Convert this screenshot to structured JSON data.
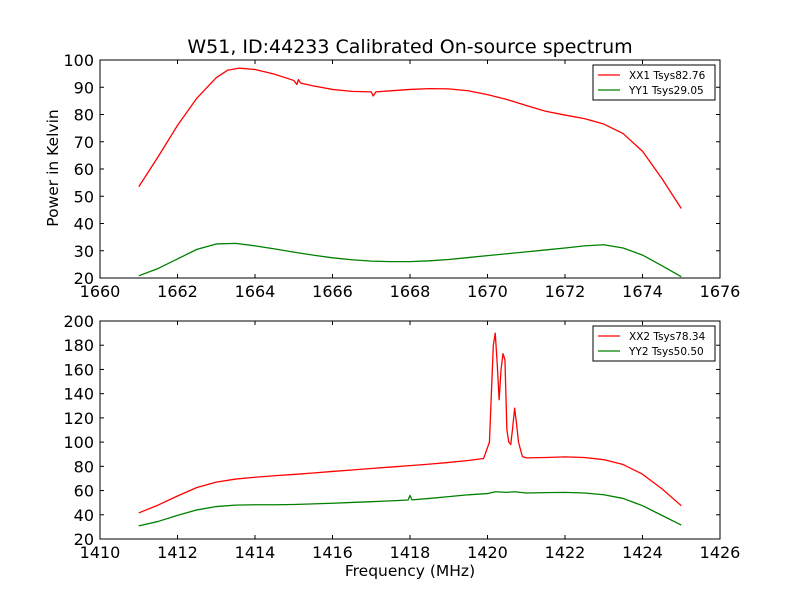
{
  "chart_data": [
    {
      "type": "line",
      "title": "W51, ID:44233 Calibrated On-source spectrum",
      "xlabel": "",
      "ylabel": "Power in Kelvin",
      "xlim": [
        1660,
        1676
      ],
      "ylim": [
        20,
        100
      ],
      "xticks": [
        1660,
        1662,
        1664,
        1666,
        1668,
        1670,
        1672,
        1674,
        1676
      ],
      "yticks": [
        20,
        30,
        40,
        50,
        60,
        70,
        80,
        90,
        100
      ],
      "grid": false,
      "legend_position": "top-right",
      "series": [
        {
          "name": "XX1 Tsys82.76",
          "color": "#ff0000",
          "points": [
            [
              1661.0,
              53.5
            ],
            [
              1661.5,
              64.5
            ],
            [
              1662.0,
              76.0
            ],
            [
              1662.5,
              86.0
            ],
            [
              1663.0,
              93.5
            ],
            [
              1663.3,
              96.3
            ],
            [
              1663.6,
              97.0
            ],
            [
              1664.0,
              96.5
            ],
            [
              1664.5,
              94.8
            ],
            [
              1665.0,
              92.5
            ],
            [
              1665.08,
              91.0
            ],
            [
              1665.12,
              92.8
            ],
            [
              1665.18,
              91.5
            ],
            [
              1665.5,
              90.5
            ],
            [
              1666.0,
              89.2
            ],
            [
              1666.5,
              88.5
            ],
            [
              1667.0,
              88.3
            ],
            [
              1667.05,
              86.8
            ],
            [
              1667.12,
              88.3
            ],
            [
              1667.5,
              88.7
            ],
            [
              1668.0,
              89.2
            ],
            [
              1668.5,
              89.5
            ],
            [
              1669.0,
              89.4
            ],
            [
              1669.5,
              88.7
            ],
            [
              1670.0,
              87.3
            ],
            [
              1670.5,
              85.5
            ],
            [
              1671.0,
              83.3
            ],
            [
              1671.5,
              81.2
            ],
            [
              1672.0,
              79.8
            ],
            [
              1672.5,
              78.5
            ],
            [
              1673.0,
              76.5
            ],
            [
              1673.5,
              73.0
            ],
            [
              1674.0,
              66.5
            ],
            [
              1674.5,
              56.5
            ],
            [
              1675.0,
              45.5
            ]
          ]
        },
        {
          "name": "YY1 Tsys29.05",
          "color": "#008000",
          "points": [
            [
              1661.0,
              20.8
            ],
            [
              1661.5,
              23.5
            ],
            [
              1662.0,
              27.0
            ],
            [
              1662.5,
              30.5
            ],
            [
              1663.0,
              32.5
            ],
            [
              1663.5,
              32.7
            ],
            [
              1664.0,
              31.8
            ],
            [
              1664.5,
              30.7
            ],
            [
              1665.0,
              29.5
            ],
            [
              1665.5,
              28.4
            ],
            [
              1666.0,
              27.4
            ],
            [
              1666.5,
              26.7
            ],
            [
              1667.0,
              26.2
            ],
            [
              1667.5,
              26.0
            ],
            [
              1668.0,
              26.0
            ],
            [
              1668.5,
              26.3
            ],
            [
              1669.0,
              26.8
            ],
            [
              1669.5,
              27.5
            ],
            [
              1670.0,
              28.2
            ],
            [
              1670.5,
              28.9
            ],
            [
              1671.0,
              29.6
            ],
            [
              1671.5,
              30.3
            ],
            [
              1672.0,
              31.0
            ],
            [
              1672.5,
              31.8
            ],
            [
              1673.0,
              32.2
            ],
            [
              1673.5,
              31.0
            ],
            [
              1674.0,
              28.4
            ],
            [
              1674.5,
              24.5
            ],
            [
              1675.0,
              20.5
            ]
          ]
        }
      ]
    },
    {
      "type": "line",
      "title": "",
      "xlabel": "Frequency (MHz)",
      "ylabel": "",
      "xlim": [
        1410,
        1426
      ],
      "ylim": [
        20,
        200
      ],
      "xticks": [
        1410,
        1412,
        1414,
        1416,
        1418,
        1420,
        1422,
        1424,
        1426
      ],
      "yticks": [
        20,
        40,
        60,
        80,
        100,
        120,
        140,
        160,
        180,
        200
      ],
      "grid": false,
      "legend_position": "top-right",
      "series": [
        {
          "name": "XX2 Tsys78.34",
          "color": "#ff0000",
          "points": [
            [
              1411.0,
              41.5
            ],
            [
              1411.5,
              48.0
            ],
            [
              1412.0,
              55.5
            ],
            [
              1412.5,
              62.5
            ],
            [
              1413.0,
              67.0
            ],
            [
              1413.5,
              69.5
            ],
            [
              1414.0,
              71.0
            ],
            [
              1414.5,
              72.2
            ],
            [
              1415.0,
              73.3
            ],
            [
              1415.5,
              74.5
            ],
            [
              1416.0,
              75.8
            ],
            [
              1416.5,
              77.0
            ],
            [
              1417.0,
              78.2
            ],
            [
              1417.5,
              79.4
            ],
            [
              1418.0,
              80.6
            ],
            [
              1418.5,
              81.8
            ],
            [
              1419.0,
              83.2
            ],
            [
              1419.5,
              84.8
            ],
            [
              1419.9,
              86.5
            ],
            [
              1420.05,
              100.0
            ],
            [
              1420.15,
              180.0
            ],
            [
              1420.2,
              190.0
            ],
            [
              1420.25,
              165.0
            ],
            [
              1420.3,
              135.0
            ],
            [
              1420.35,
              160.0
            ],
            [
              1420.4,
              173.0
            ],
            [
              1420.45,
              168.0
            ],
            [
              1420.5,
              110.0
            ],
            [
              1420.55,
              100.0
            ],
            [
              1420.6,
              98.0
            ],
            [
              1420.65,
              112.0
            ],
            [
              1420.7,
              128.0
            ],
            [
              1420.75,
              115.0
            ],
            [
              1420.8,
              100.0
            ],
            [
              1420.9,
              88.0
            ],
            [
              1421.0,
              87.0
            ],
            [
              1421.5,
              87.3
            ],
            [
              1422.0,
              87.8
            ],
            [
              1422.5,
              87.3
            ],
            [
              1423.0,
              85.5
            ],
            [
              1423.5,
              81.5
            ],
            [
              1424.0,
              73.5
            ],
            [
              1424.5,
              61.5
            ],
            [
              1425.0,
              47.5
            ]
          ]
        },
        {
          "name": "YY2 Tsys50.50",
          "color": "#008000",
          "points": [
            [
              1411.0,
              30.8
            ],
            [
              1411.5,
              34.5
            ],
            [
              1412.0,
              39.5
            ],
            [
              1412.5,
              44.0
            ],
            [
              1413.0,
              46.8
            ],
            [
              1413.5,
              48.0
            ],
            [
              1414.0,
              48.3
            ],
            [
              1414.5,
              48.3
            ],
            [
              1415.0,
              48.5
            ],
            [
              1415.5,
              49.0
            ],
            [
              1416.0,
              49.5
            ],
            [
              1416.5,
              50.2
            ],
            [
              1417.0,
              50.8
            ],
            [
              1417.5,
              51.5
            ],
            [
              1417.95,
              52.2
            ],
            [
              1418.0,
              56.0
            ],
            [
              1418.05,
              52.3
            ],
            [
              1418.5,
              53.5
            ],
            [
              1419.0,
              55.0
            ],
            [
              1419.5,
              56.5
            ],
            [
              1420.0,
              57.5
            ],
            [
              1420.2,
              59.0
            ],
            [
              1420.5,
              58.5
            ],
            [
              1420.7,
              59.0
            ],
            [
              1421.0,
              58.0
            ],
            [
              1421.5,
              58.3
            ],
            [
              1422.0,
              58.5
            ],
            [
              1422.5,
              58.0
            ],
            [
              1423.0,
              56.5
            ],
            [
              1423.5,
              53.5
            ],
            [
              1424.0,
              47.5
            ],
            [
              1424.5,
              39.5
            ],
            [
              1425.0,
              31.5
            ]
          ]
        }
      ]
    }
  ]
}
